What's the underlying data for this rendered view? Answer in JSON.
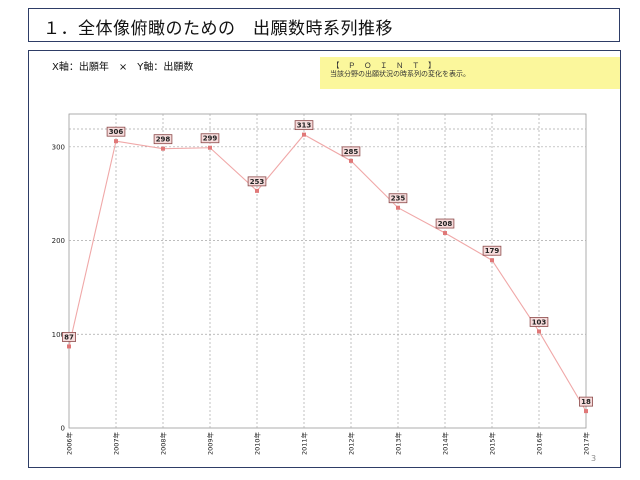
{
  "header": {
    "title": "１．全体像俯瞰のための　出願数時系列推移"
  },
  "axis_caption": "X軸：出願年　×　Y軸：出願数",
  "point": {
    "heading": "【　Ｐ　Ｏ　Ｉ　Ｎ　Ｔ　】",
    "body": "当該分野の出願状況の時系列の変化を表示。"
  },
  "page_number": "3",
  "colors": {
    "line": "#f0a8a8",
    "marker": "#e07878",
    "label_fill": "#f6dcdc",
    "label_border": "#8c4a4a",
    "point_bg": "#fbf79c",
    "frame": "#2e3d66"
  },
  "chart_data": {
    "type": "line",
    "categories": [
      "2006年",
      "2007年",
      "2008年",
      "2009年",
      "2010年",
      "2011年",
      "2012年",
      "2013年",
      "2014年",
      "2015年",
      "2016年",
      "2017年"
    ],
    "series": [
      {
        "values": [
          87,
          306,
          298,
          299,
          253,
          313,
          285,
          235,
          208,
          179,
          103,
          18
        ]
      }
    ],
    "yticks": [
      0,
      100,
      200,
      300
    ],
    "ylim": [
      0,
      335
    ],
    "grid": true,
    "data_labels": true,
    "xlabel": "",
    "ylabel": "",
    "title": ""
  }
}
